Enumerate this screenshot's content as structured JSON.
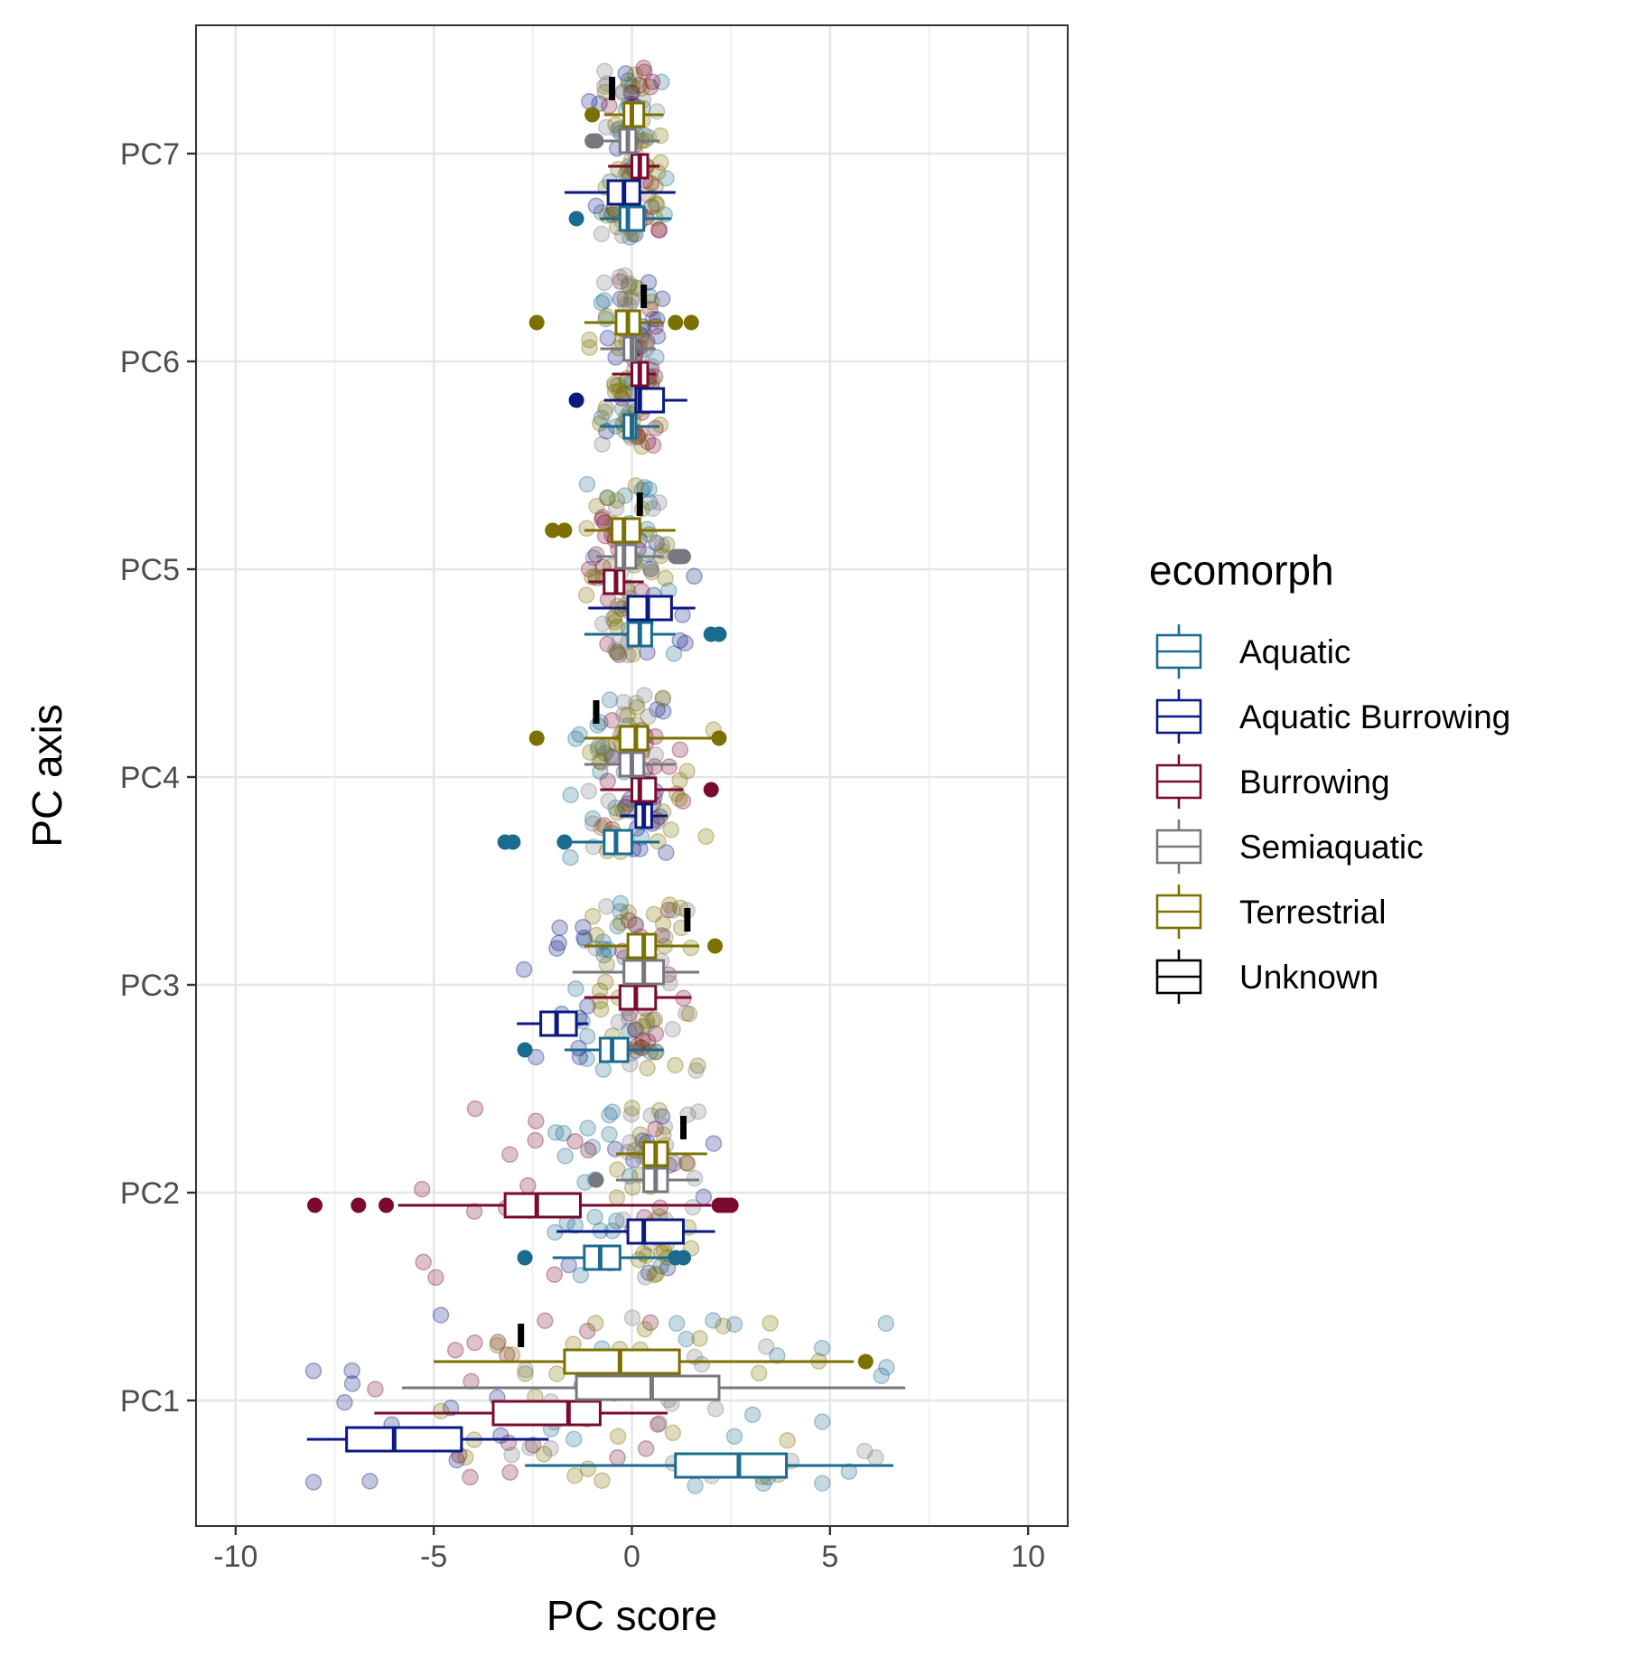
{
  "chart_data": {
    "type": "boxplot",
    "xlabel": "PC score",
    "ylabel": "PC axis",
    "xlim": [
      -11,
      11
    ],
    "x_ticks": [
      -10,
      -5,
      0,
      5,
      10
    ],
    "x_tick_labels": [
      "-10",
      "-5",
      "0",
      "5",
      "10"
    ],
    "categories": [
      "PC1",
      "PC2",
      "PC3",
      "PC4",
      "PC5",
      "PC6",
      "PC7"
    ],
    "grid": true,
    "legend": {
      "title": "ecomorph",
      "placement": "right",
      "entries": [
        "Aquatic",
        "Aquatic Burrowing",
        "Burrowing",
        "Semiaquatic",
        "Terrestrial",
        "Unknown"
      ]
    },
    "series": [
      {
        "name": "Aquatic",
        "color": "#1b6b8f",
        "boxes": [
          {
            "axis": "PC1",
            "whisker_low": -2.7,
            "q1": 1.1,
            "median": 2.7,
            "q3": 3.9,
            "whisker_high": 6.6,
            "outliers": []
          },
          {
            "axis": "PC2",
            "whisker_low": -2.0,
            "q1": -1.2,
            "median": -0.8,
            "q3": -0.3,
            "whisker_high": 1.1,
            "outliers": [
              -2.7,
              1.1,
              1.3
            ]
          },
          {
            "axis": "PC3",
            "whisker_low": -1.7,
            "q1": -0.8,
            "median": -0.5,
            "q3": -0.1,
            "whisker_high": 0.8,
            "outliers": [
              -2.7
            ]
          },
          {
            "axis": "PC4",
            "whisker_low": -1.6,
            "q1": -0.7,
            "median": -0.4,
            "q3": 0.0,
            "whisker_high": 0.7,
            "outliers": [
              -3.2,
              -3.0,
              -1.7
            ]
          },
          {
            "axis": "PC5",
            "whisker_low": -1.2,
            "q1": -0.1,
            "median": 0.2,
            "q3": 0.5,
            "whisker_high": 1.1,
            "outliers": [
              2.0,
              2.2
            ]
          },
          {
            "axis": "PC6",
            "whisker_low": -0.8,
            "q1": -0.2,
            "median": 0.0,
            "q3": 0.1,
            "whisker_high": 0.7,
            "outliers": []
          },
          {
            "axis": "PC7",
            "whisker_low": -0.8,
            "q1": -0.3,
            "median": -0.1,
            "q3": 0.3,
            "whisker_high": 1.0,
            "outliers": [
              -1.4
            ]
          }
        ]
      },
      {
        "name": "Aquatic Burrowing",
        "color": "#0a1a82",
        "boxes": [
          {
            "axis": "PC1",
            "whisker_low": -8.2,
            "q1": -7.2,
            "median": -6.0,
            "q3": -4.3,
            "whisker_high": -2.1,
            "outliers": []
          },
          {
            "axis": "PC2",
            "whisker_low": -1.9,
            "q1": -0.1,
            "median": 0.3,
            "q3": 1.3,
            "whisker_high": 2.1,
            "outliers": []
          },
          {
            "axis": "PC3",
            "whisker_low": -2.9,
            "q1": -2.3,
            "median": -1.9,
            "q3": -1.4,
            "whisker_high": -1.1,
            "outliers": []
          },
          {
            "axis": "PC4",
            "whisker_low": -0.3,
            "q1": 0.1,
            "median": 0.3,
            "q3": 0.5,
            "whisker_high": 0.9,
            "outliers": []
          },
          {
            "axis": "PC5",
            "whisker_low": -1.1,
            "q1": -0.1,
            "median": 0.4,
            "q3": 1.0,
            "whisker_high": 1.6,
            "outliers": []
          },
          {
            "axis": "PC6",
            "whisker_low": -0.7,
            "q1": 0.1,
            "median": 0.2,
            "q3": 0.8,
            "whisker_high": 1.4,
            "outliers": [
              -1.4
            ]
          },
          {
            "axis": "PC7",
            "whisker_low": -1.7,
            "q1": -0.6,
            "median": -0.2,
            "q3": 0.2,
            "whisker_high": 1.1,
            "outliers": []
          }
        ]
      },
      {
        "name": "Burrowing",
        "color": "#7a0b2e",
        "boxes": [
          {
            "axis": "PC1",
            "whisker_low": -6.5,
            "q1": -3.5,
            "median": -1.6,
            "q3": -0.8,
            "whisker_high": 0.9,
            "outliers": []
          },
          {
            "axis": "PC2",
            "whisker_low": -5.9,
            "q1": -3.2,
            "median": -2.4,
            "q3": -1.3,
            "whisker_high": 2.0,
            "outliers": [
              -8.0,
              -6.9,
              -6.2,
              2.2,
              2.3,
              2.4,
              2.5
            ]
          },
          {
            "axis": "PC3",
            "whisker_low": -1.2,
            "q1": -0.3,
            "median": 0.1,
            "q3": 0.6,
            "whisker_high": 1.5,
            "outliers": []
          },
          {
            "axis": "PC4",
            "whisker_low": -0.8,
            "q1": 0.0,
            "median": 0.2,
            "q3": 0.6,
            "whisker_high": 1.3,
            "outliers": [
              2.0
            ]
          },
          {
            "axis": "PC5",
            "whisker_low": -1.1,
            "q1": -0.7,
            "median": -0.4,
            "q3": -0.2,
            "whisker_high": 0.3,
            "outliers": []
          },
          {
            "axis": "PC6",
            "whisker_low": -0.5,
            "q1": 0.0,
            "median": 0.2,
            "q3": 0.4,
            "whisker_high": 0.6,
            "outliers": []
          },
          {
            "axis": "PC7",
            "whisker_low": -0.6,
            "q1": 0.0,
            "median": 0.2,
            "q3": 0.4,
            "whisker_high": 0.7,
            "outliers": []
          }
        ]
      },
      {
        "name": "Semiaquatic",
        "color": "#77777f",
        "boxes": [
          {
            "axis": "PC1",
            "whisker_low": -5.8,
            "q1": -1.4,
            "median": 0.5,
            "q3": 2.2,
            "whisker_high": 6.9,
            "outliers": []
          },
          {
            "axis": "PC2",
            "whisker_low": -0.4,
            "q1": 0.3,
            "median": 0.6,
            "q3": 0.9,
            "whisker_high": 1.7,
            "outliers": [
              -0.9
            ]
          },
          {
            "axis": "PC3",
            "whisker_low": -1.5,
            "q1": -0.2,
            "median": 0.3,
            "q3": 0.8,
            "whisker_high": 1.7,
            "outliers": []
          },
          {
            "axis": "PC4",
            "whisker_low": -1.2,
            "q1": -0.3,
            "median": 0.0,
            "q3": 0.3,
            "whisker_high": 1.1,
            "outliers": []
          },
          {
            "axis": "PC5",
            "whisker_low": -0.9,
            "q1": -0.4,
            "median": -0.2,
            "q3": 0.1,
            "whisker_high": 0.8,
            "outliers": [
              1.1,
              1.2,
              1.3
            ]
          },
          {
            "axis": "PC6",
            "whisker_low": -0.8,
            "q1": -0.2,
            "median": 0.0,
            "q3": 0.1,
            "whisker_high": 0.6,
            "outliers": []
          },
          {
            "axis": "PC7",
            "whisker_low": -0.8,
            "q1": -0.3,
            "median": -0.1,
            "q3": 0.1,
            "whisker_high": 0.7,
            "outliers": [
              -1.0,
              -0.9
            ]
          }
        ]
      },
      {
        "name": "Terrestrial",
        "color": "#7b7000",
        "boxes": [
          {
            "axis": "PC1",
            "whisker_low": -5.0,
            "q1": -1.7,
            "median": -0.3,
            "q3": 1.2,
            "whisker_high": 5.6,
            "outliers": [
              5.9
            ]
          },
          {
            "axis": "PC2",
            "whisker_low": -0.4,
            "q1": 0.3,
            "median": 0.6,
            "q3": 0.9,
            "whisker_high": 1.9,
            "outliers": []
          },
          {
            "axis": "PC3",
            "whisker_low": -1.2,
            "q1": -0.1,
            "median": 0.3,
            "q3": 0.6,
            "whisker_high": 1.7,
            "outliers": [
              2.1
            ]
          },
          {
            "axis": "PC4",
            "whisker_low": -1.2,
            "q1": -0.3,
            "median": 0.1,
            "q3": 0.4,
            "whisker_high": 2.1,
            "outliers": [
              -2.4,
              2.2
            ]
          },
          {
            "axis": "PC5",
            "whisker_low": -1.2,
            "q1": -0.5,
            "median": -0.2,
            "q3": 0.2,
            "whisker_high": 1.1,
            "outliers": [
              -2.0,
              -1.7
            ]
          },
          {
            "axis": "PC6",
            "whisker_low": -1.2,
            "q1": -0.4,
            "median": -0.1,
            "q3": 0.2,
            "whisker_high": 0.8,
            "outliers": [
              -2.4,
              1.1,
              1.5
            ]
          },
          {
            "axis": "PC7",
            "whisker_low": -0.7,
            "q1": -0.2,
            "median": 0.0,
            "q3": 0.3,
            "whisker_high": 0.8,
            "outliers": [
              -1.0
            ]
          }
        ]
      },
      {
        "name": "Unknown",
        "color": "#000000",
        "boxes": [
          {
            "axis": "PC1",
            "whisker_low": -2.8,
            "q1": -2.8,
            "median": -2.8,
            "q3": -2.8,
            "whisker_high": -2.8,
            "outliers": []
          },
          {
            "axis": "PC2",
            "whisker_low": 1.3,
            "q1": 1.3,
            "median": 1.3,
            "q3": 1.3,
            "whisker_high": 1.3,
            "outliers": []
          },
          {
            "axis": "PC3",
            "whisker_low": 1.4,
            "q1": 1.4,
            "median": 1.4,
            "q3": 1.4,
            "whisker_high": 1.4,
            "outliers": []
          },
          {
            "axis": "PC4",
            "whisker_low": -0.9,
            "q1": -0.9,
            "median": -0.9,
            "q3": -0.9,
            "whisker_high": -0.9,
            "outliers": []
          },
          {
            "axis": "PC5",
            "whisker_low": 0.2,
            "q1": 0.2,
            "median": 0.2,
            "q3": 0.2,
            "whisker_high": 0.2,
            "outliers": []
          },
          {
            "axis": "PC6",
            "whisker_low": 0.3,
            "q1": 0.3,
            "median": 0.3,
            "q3": 0.3,
            "whisker_high": 0.3,
            "outliers": []
          },
          {
            "axis": "PC7",
            "whisker_low": -0.5,
            "q1": -0.5,
            "median": -0.5,
            "q3": -0.5,
            "whisker_high": -0.5,
            "outliers": []
          }
        ]
      }
    ]
  }
}
